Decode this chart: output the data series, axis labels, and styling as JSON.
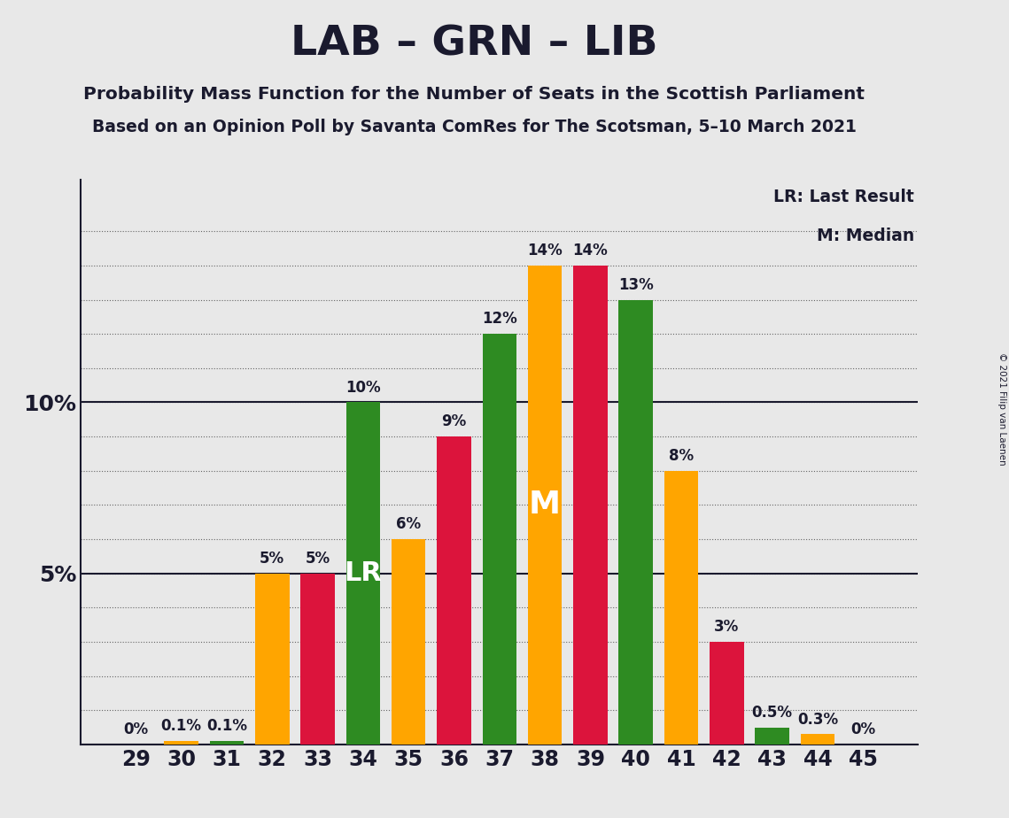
{
  "title": "LAB – GRN – LIB",
  "subtitle1": "Probability Mass Function for the Number of Seats in the Scottish Parliament",
  "subtitle2": "Based on an Opinion Poll by Savanta ComRes for The Scotsman, 5–10 March 2021",
  "copyright": "© 2021 Filip van Laenen",
  "legend_lr": "LR: Last Result",
  "legend_m": "M: Median",
  "background_color": "#e8e8e8",
  "bar_color_orange": "#FFA500",
  "bar_color_red": "#DC143C",
  "bar_color_green": "#2E8B22",
  "label_color": "#1a1a2e",
  "seats": [
    29,
    30,
    31,
    32,
    33,
    34,
    35,
    36,
    37,
    38,
    39,
    40,
    41,
    42,
    43,
    44,
    45
  ],
  "values": [
    0.0,
    0.1,
    0.1,
    5.0,
    5.0,
    10.0,
    6.0,
    9.0,
    12.0,
    14.0,
    14.0,
    13.0,
    8.0,
    3.0,
    0.5,
    0.3,
    0.0
  ],
  "colors": [
    "red",
    "orange",
    "green",
    "orange",
    "red",
    "green",
    "orange",
    "red",
    "green",
    "orange",
    "red",
    "green",
    "orange",
    "red",
    "green",
    "orange",
    "red"
  ],
  "bar_labels": [
    "0%",
    "0.1%",
    "0.1%",
    "5%",
    "5%",
    "10%",
    "6%",
    "9%",
    "12%",
    "14%",
    "14%",
    "13%",
    "8%",
    "3%",
    "0.5%",
    "0.3%",
    "0%"
  ],
  "lr_idx": 5,
  "m_idx": 9,
  "ylim": [
    0,
    16.5
  ],
  "grid_color": "#666666"
}
